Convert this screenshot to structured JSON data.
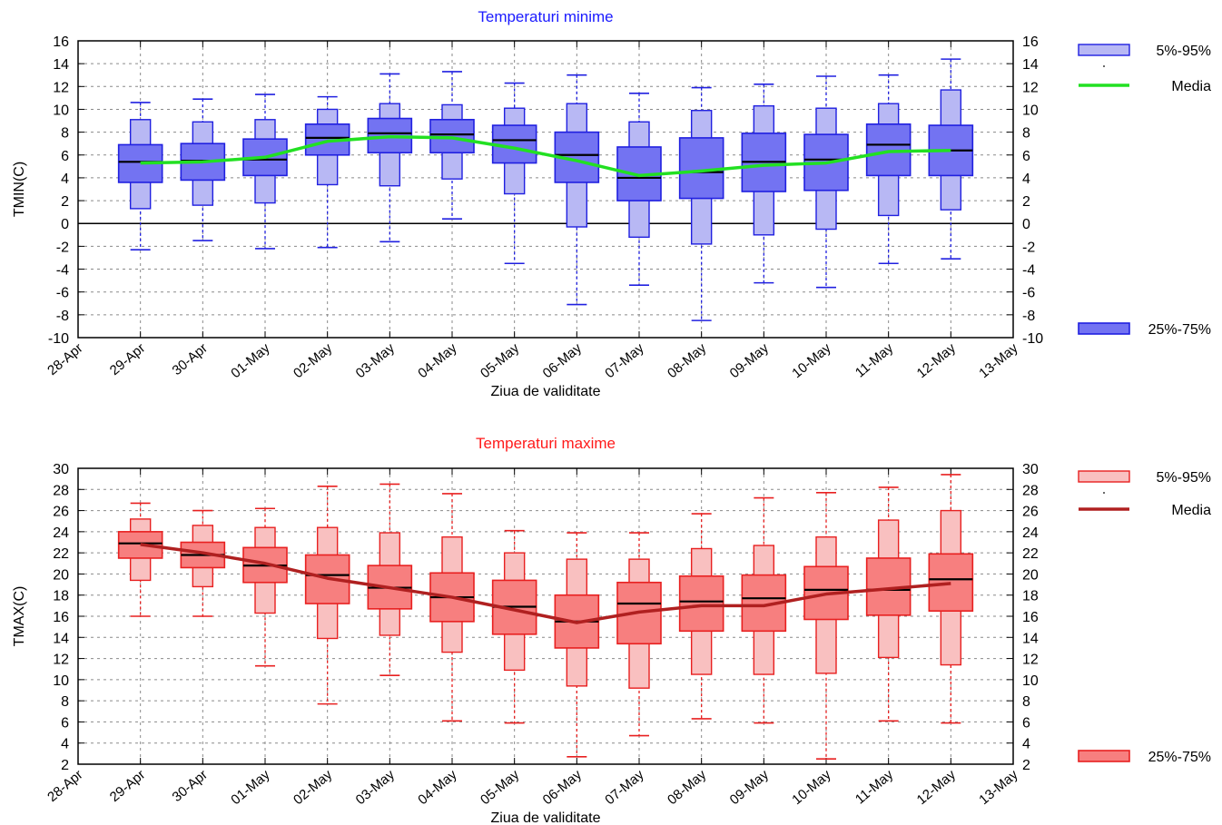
{
  "chart_data": [
    {
      "type": "boxplot",
      "title": "Temperaturi minime",
      "xlabel": "Ziua de validitate",
      "ylabel": "TMIN(C)",
      "ylim": [
        -10,
        16
      ],
      "ytick_step": 2,
      "grid": true,
      "x_tick_labels": [
        "28-Apr",
        "29-Apr",
        "30-Apr",
        "01-May",
        "02-May",
        "03-May",
        "04-May",
        "05-May",
        "06-May",
        "07-May",
        "08-May",
        "09-May",
        "10-May",
        "11-May",
        "12-May",
        "13-May"
      ],
      "categories": [
        "29-Apr",
        "30-Apr",
        "01-May",
        "02-May",
        "03-May",
        "04-May",
        "05-May",
        "06-May",
        "07-May",
        "08-May",
        "09-May",
        "10-May",
        "11-May",
        "12-May"
      ],
      "min": [
        -2.3,
        -1.5,
        -2.2,
        -2.1,
        -1.6,
        0.4,
        -3.5,
        -7.1,
        -5.4,
        -8.5,
        -5.2,
        -5.6,
        -3.5,
        -3.1
      ],
      "p5": [
        1.3,
        1.6,
        1.8,
        3.4,
        3.3,
        3.9,
        2.6,
        -0.3,
        -1.2,
        -1.8,
        -1.0,
        -0.5,
        0.7,
        1.2
      ],
      "p25": [
        3.6,
        3.8,
        4.2,
        6.0,
        6.2,
        6.2,
        5.3,
        3.6,
        2.0,
        2.2,
        2.8,
        2.9,
        4.2,
        4.2
      ],
      "median": [
        5.4,
        5.5,
        5.6,
        7.5,
        7.9,
        7.8,
        7.3,
        6.0,
        4.0,
        4.5,
        5.4,
        5.6,
        6.9,
        6.4
      ],
      "p75": [
        6.9,
        7.0,
        7.4,
        8.7,
        9.2,
        9.1,
        8.6,
        8.0,
        6.7,
        7.5,
        7.9,
        7.8,
        8.7,
        8.6
      ],
      "p95": [
        9.1,
        8.9,
        9.1,
        10.0,
        10.5,
        10.4,
        10.1,
        10.5,
        8.9,
        9.9,
        10.3,
        10.1,
        10.5,
        11.7
      ],
      "max": [
        10.6,
        10.9,
        11.3,
        11.1,
        13.1,
        13.3,
        12.3,
        13.0,
        11.4,
        11.9,
        12.2,
        12.9,
        13.0,
        14.4
      ],
      "mean": [
        5.3,
        5.4,
        5.8,
        7.2,
        7.6,
        7.5,
        6.6,
        5.5,
        4.2,
        4.6,
        5.1,
        5.3,
        6.3,
        6.4
      ],
      "legend": {
        "p5_95": "5%-95%",
        "mean": "Media",
        "p25_75": "25%-75%"
      },
      "colors": {
        "title": "#1a1aff",
        "box_light": "#b8b8f4",
        "box_dark": "#7373f2",
        "stroke": "#2020e0",
        "mean": "#22e022"
      }
    },
    {
      "type": "boxplot",
      "title": "Temperaturi maxime",
      "xlabel": "Ziua de validitate",
      "ylabel": "TMAX(C)",
      "ylim": [
        2,
        30
      ],
      "ytick_step": 2,
      "grid": true,
      "x_tick_labels": [
        "28-Apr",
        "29-Apr",
        "30-Apr",
        "01-May",
        "02-May",
        "03-May",
        "04-May",
        "05-May",
        "06-May",
        "07-May",
        "08-May",
        "09-May",
        "10-May",
        "11-May",
        "12-May",
        "13-May"
      ],
      "categories": [
        "29-Apr",
        "30-Apr",
        "01-May",
        "02-May",
        "03-May",
        "04-May",
        "05-May",
        "06-May",
        "07-May",
        "08-May",
        "09-May",
        "10-May",
        "11-May",
        "12-May"
      ],
      "min": [
        16.0,
        16.0,
        11.3,
        7.7,
        10.4,
        6.1,
        5.9,
        2.7,
        4.7,
        6.3,
        5.9,
        2.5,
        6.1,
        5.9
      ],
      "p5": [
        19.4,
        18.8,
        16.3,
        13.9,
        14.2,
        12.6,
        10.9,
        9.4,
        9.2,
        10.5,
        10.5,
        10.6,
        12.1,
        11.4
      ],
      "p25": [
        21.5,
        20.6,
        19.2,
        17.2,
        16.7,
        15.5,
        14.3,
        13.0,
        13.4,
        14.6,
        14.6,
        15.7,
        16.1,
        16.5
      ],
      "median": [
        22.9,
        21.8,
        20.8,
        19.9,
        18.7,
        17.8,
        16.9,
        15.5,
        17.2,
        17.4,
        17.7,
        18.5,
        18.5,
        19.5
      ],
      "p75": [
        24.0,
        23.0,
        22.5,
        21.8,
        20.8,
        20.1,
        19.4,
        18.0,
        19.2,
        19.8,
        19.9,
        20.7,
        21.5,
        21.9
      ],
      "p95": [
        25.2,
        24.6,
        24.4,
        24.4,
        23.9,
        23.5,
        22.0,
        21.4,
        21.4,
        22.4,
        22.7,
        23.5,
        25.1,
        26.0
      ],
      "max": [
        26.7,
        26.0,
        26.2,
        28.3,
        28.5,
        27.6,
        24.1,
        23.9,
        23.9,
        25.7,
        27.2,
        27.7,
        28.2,
        29.4
      ],
      "mean": [
        22.8,
        22.0,
        21.0,
        19.6,
        18.7,
        17.8,
        16.6,
        15.4,
        16.4,
        17.0,
        17.0,
        18.1,
        18.6,
        19.1
      ],
      "legend": {
        "p5_95": "5%-95%",
        "mean": "Media",
        "p25_75": "25%-75%"
      },
      "colors": {
        "title": "#ff1a1a",
        "box_light": "#f9c0c0",
        "box_dark": "#f77f7f",
        "stroke": "#e82020",
        "mean": "#b02020"
      }
    }
  ]
}
